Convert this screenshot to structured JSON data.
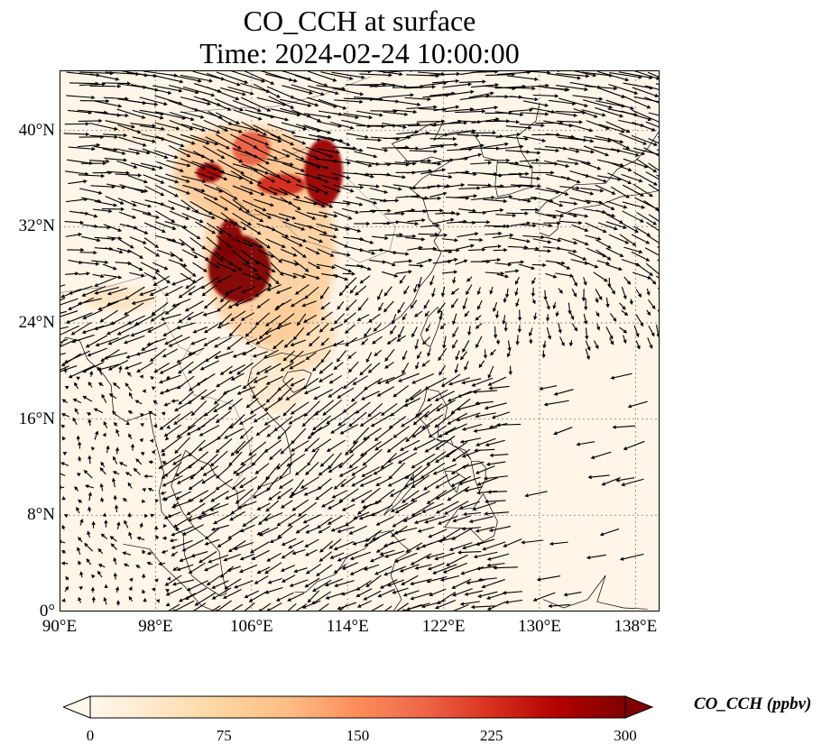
{
  "title": "CO_CCH at surface",
  "subtitle": "Time: 2024-02-24 10:00:00",
  "map": {
    "projection": "PlateCarree",
    "lon_range": [
      90,
      140
    ],
    "lat_range": [
      0,
      45
    ],
    "x_ticks": [
      {
        "lon": 90,
        "label": "90°E"
      },
      {
        "lon": 98,
        "label": "98°E"
      },
      {
        "lon": 106,
        "label": "106°E"
      },
      {
        "lon": 114,
        "label": "114°E"
      },
      {
        "lon": 122,
        "label": "122°E"
      },
      {
        "lon": 130,
        "label": "130°E"
      },
      {
        "lon": 138,
        "label": "138°E"
      }
    ],
    "y_ticks": [
      {
        "lat": 0,
        "label": "0°"
      },
      {
        "lat": 8,
        "label": "8°N"
      },
      {
        "lat": 16,
        "label": "16°N"
      },
      {
        "lat": 24,
        "label": "24°N"
      },
      {
        "lat": 32,
        "label": "32°N"
      },
      {
        "lat": 40,
        "label": "40°N"
      }
    ],
    "gridlines": true,
    "field": "CO_CCH",
    "background_color": "#fff5e8",
    "hotspots": [
      {
        "lon": 105.0,
        "lat": 28.5,
        "rx": 2.6,
        "ry": 2.8,
        "value": 300
      },
      {
        "lon": 104.2,
        "lat": 31.0,
        "rx": 1.0,
        "ry": 1.6,
        "value": 290
      },
      {
        "lon": 112.0,
        "lat": 36.5,
        "rx": 1.6,
        "ry": 2.8,
        "value": 280
      },
      {
        "lon": 102.5,
        "lat": 36.5,
        "rx": 1.1,
        "ry": 0.8,
        "value": 270
      },
      {
        "lon": 108.5,
        "lat": 35.5,
        "rx": 2.0,
        "ry": 0.9,
        "value": 230
      },
      {
        "lon": 106.0,
        "lat": 38.5,
        "rx": 1.6,
        "ry": 1.4,
        "value": 190
      },
      {
        "lon": 107.5,
        "lat": 30.0,
        "rx": 5.5,
        "ry": 8.0,
        "value": 90
      },
      {
        "lon": 105.5,
        "lat": 36.5,
        "rx": 6.0,
        "ry": 4.0,
        "value": 100
      },
      {
        "lon": 110.0,
        "lat": 23.0,
        "rx": 3.0,
        "ry": 3.0,
        "value": 60
      },
      {
        "lon": 108.0,
        "lat": 19.0,
        "rx": 2.5,
        "ry": 2.5,
        "value": 35
      },
      {
        "lon": 95.0,
        "lat": 26.0,
        "rx": 3.0,
        "ry": 1.0,
        "value": 50
      },
      {
        "lon": 98.0,
        "lat": 40.0,
        "rx": 4.0,
        "ry": 1.0,
        "value": 30
      }
    ],
    "wind_vectors": "quiver",
    "coastlines": true,
    "borders": true
  },
  "colorbar": {
    "label": "CO_CCH (ppbv)",
    "min": 0,
    "max": 300,
    "extend": "both",
    "ticks": [
      "0",
      "75",
      "150",
      "225",
      "300"
    ],
    "colormap": "OrRd",
    "stops": [
      "#fff7ec",
      "#fee8c8",
      "#fdd49e",
      "#fdbb84",
      "#fc8d59",
      "#ef6548",
      "#d7301f",
      "#b30000",
      "#7f0000"
    ]
  }
}
